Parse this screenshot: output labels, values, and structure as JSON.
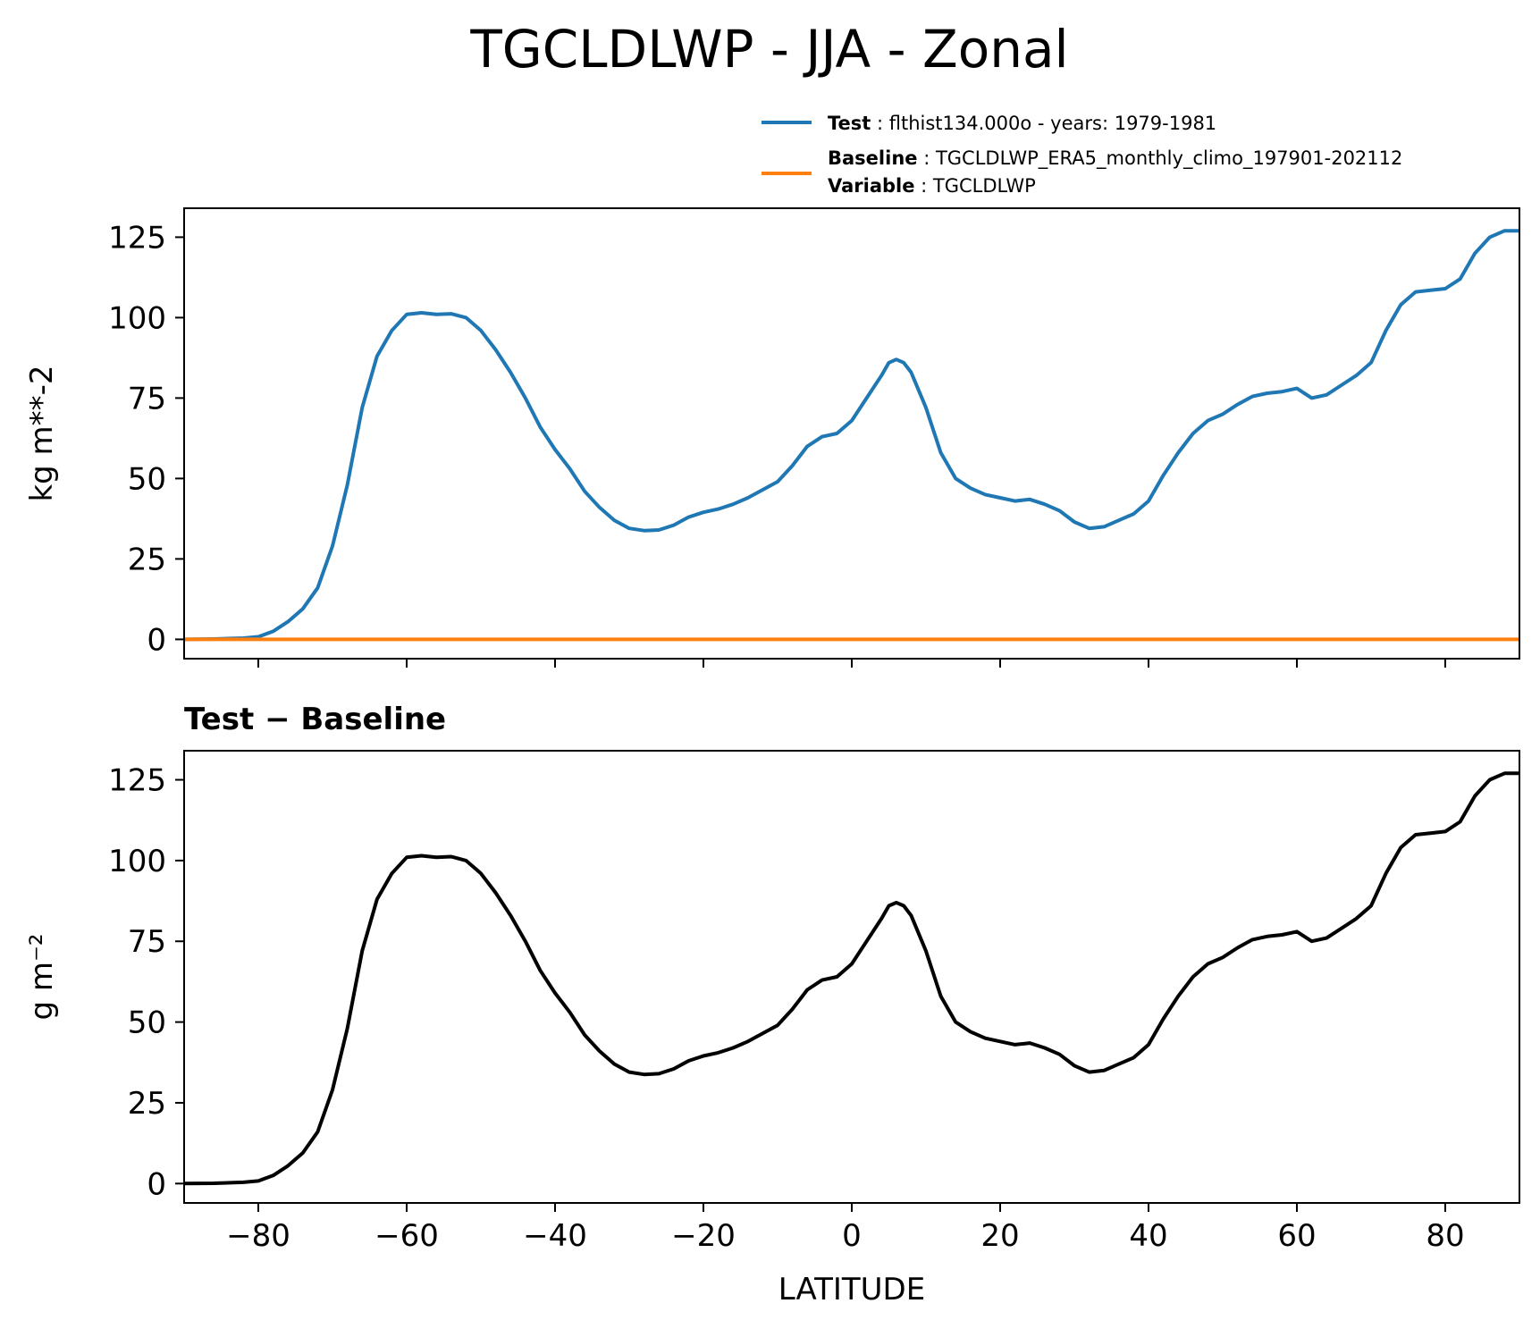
{
  "title": "TGCLDLWP - JJA - Zonal",
  "legend": {
    "test_label": "Test",
    "test_value": "flthist134.000o - years: 1979-1981",
    "baseline_label": "Baseline",
    "baseline_value": "TGCLDLWP_ERA5_monthly_climo_197901-202112",
    "variable_label": "Variable",
    "variable_value": "TGCLDLWP"
  },
  "colors": {
    "test": "#1f77b4",
    "baseline": "#ff7f0e",
    "diff": "#000000"
  },
  "chart_data": [
    {
      "type": "line",
      "title": "",
      "xlabel": "",
      "ylabel": "kg m**-2",
      "xlim": [
        -90,
        90
      ],
      "ylim": [
        -6,
        134
      ],
      "xticks": [
        -80,
        -60,
        -40,
        -20,
        0,
        20,
        40,
        60,
        80
      ],
      "yticks": [
        0,
        25,
        50,
        75,
        100,
        125
      ],
      "legend_position": "upper-right-outside",
      "x": [
        -90,
        -86,
        -82,
        -80,
        -78,
        -76,
        -74,
        -72,
        -70,
        -68,
        -66,
        -64,
        -62,
        -60,
        -58,
        -56,
        -54,
        -52,
        -50,
        -48,
        -46,
        -44,
        -42,
        -40,
        -38,
        -36,
        -34,
        -32,
        -30,
        -28,
        -26,
        -24,
        -22,
        -20,
        -18,
        -16,
        -14,
        -12,
        -10,
        -8,
        -6,
        -4,
        -2,
        0,
        2,
        4,
        5,
        6,
        7,
        8,
        10,
        12,
        14,
        16,
        18,
        20,
        22,
        24,
        26,
        28,
        30,
        32,
        34,
        36,
        38,
        40,
        42,
        44,
        46,
        48,
        50,
        52,
        54,
        56,
        58,
        60,
        62,
        64,
        66,
        68,
        70,
        72,
        74,
        76,
        78,
        80,
        82,
        84,
        86,
        88,
        90
      ],
      "series": [
        {
          "name": "Test",
          "color": "#1f77b4",
          "values": [
            0,
            0.1,
            0.4,
            0.8,
            2.5,
            5.5,
            9.5,
            16,
            29,
            48,
            72,
            88,
            96,
            101,
            101.5,
            101,
            101.2,
            100,
            96,
            90,
            83,
            75,
            66,
            59,
            53,
            46,
            41,
            37,
            34.5,
            33.8,
            34,
            35.5,
            38,
            39.5,
            40.5,
            42,
            44,
            46.5,
            49,
            54,
            60,
            63,
            64,
            68,
            75,
            82,
            86,
            87,
            86,
            83,
            72,
            58,
            50,
            47,
            45,
            44,
            43,
            43.5,
            42,
            40,
            36.5,
            34.5,
            35,
            37,
            39,
            43,
            51,
            58,
            64,
            68,
            70,
            73,
            75.5,
            76.5,
            77,
            78,
            75,
            76,
            79,
            82,
            86,
            96,
            104,
            108,
            108.5,
            109,
            112,
            120,
            125,
            127,
            127
          ]
        },
        {
          "name": "Baseline",
          "color": "#ff7f0e",
          "values": [
            0,
            0,
            0,
            0,
            0,
            0,
            0,
            0,
            0,
            0,
            0,
            0,
            0,
            0,
            0,
            0,
            0,
            0,
            0,
            0,
            0,
            0,
            0,
            0,
            0,
            0,
            0,
            0,
            0,
            0,
            0,
            0,
            0,
            0,
            0,
            0,
            0,
            0,
            0,
            0,
            0,
            0,
            0,
            0,
            0,
            0,
            0,
            0,
            0,
            0,
            0,
            0,
            0,
            0,
            0,
            0,
            0,
            0,
            0,
            0,
            0,
            0,
            0,
            0,
            0,
            0,
            0,
            0,
            0,
            0,
            0,
            0,
            0,
            0,
            0,
            0,
            0,
            0,
            0,
            0,
            0,
            0,
            0,
            0,
            0,
            0,
            0,
            0,
            0,
            0,
            0
          ]
        }
      ]
    },
    {
      "type": "line",
      "title": "Test − Baseline",
      "xlabel": "LATITUDE",
      "ylabel": "g m⁻²",
      "xlim": [
        -90,
        90
      ],
      "ylim": [
        -6,
        134
      ],
      "xticks": [
        -80,
        -60,
        -40,
        -20,
        0,
        20,
        40,
        60,
        80
      ],
      "xtick_labels": [
        "−80",
        "−60",
        "−40",
        "−20",
        "0",
        "20",
        "40",
        "60",
        "80"
      ],
      "yticks": [
        0,
        25,
        50,
        75,
        100,
        125
      ],
      "x": [
        -90,
        -86,
        -82,
        -80,
        -78,
        -76,
        -74,
        -72,
        -70,
        -68,
        -66,
        -64,
        -62,
        -60,
        -58,
        -56,
        -54,
        -52,
        -50,
        -48,
        -46,
        -44,
        -42,
        -40,
        -38,
        -36,
        -34,
        -32,
        -30,
        -28,
        -26,
        -24,
        -22,
        -20,
        -18,
        -16,
        -14,
        -12,
        -10,
        -8,
        -6,
        -4,
        -2,
        0,
        2,
        4,
        5,
        6,
        7,
        8,
        10,
        12,
        14,
        16,
        18,
        20,
        22,
        24,
        26,
        28,
        30,
        32,
        34,
        36,
        38,
        40,
        42,
        44,
        46,
        48,
        50,
        52,
        54,
        56,
        58,
        60,
        62,
        64,
        66,
        68,
        70,
        72,
        74,
        76,
        78,
        80,
        82,
        84,
        86,
        88,
        90
      ],
      "series": [
        {
          "name": "",
          "color": "#000000",
          "values": [
            0,
            0.1,
            0.4,
            0.8,
            2.5,
            5.5,
            9.5,
            16,
            29,
            48,
            72,
            88,
            96,
            101,
            101.5,
            101,
            101.2,
            100,
            96,
            90,
            83,
            75,
            66,
            59,
            53,
            46,
            41,
            37,
            34.5,
            33.8,
            34,
            35.5,
            38,
            39.5,
            40.5,
            42,
            44,
            46.5,
            49,
            54,
            60,
            63,
            64,
            68,
            75,
            82,
            86,
            87,
            86,
            83,
            72,
            58,
            50,
            47,
            45,
            44,
            43,
            43.5,
            42,
            40,
            36.5,
            34.5,
            35,
            37,
            39,
            43,
            51,
            58,
            64,
            68,
            70,
            73,
            75.5,
            76.5,
            77,
            78,
            75,
            76,
            79,
            82,
            86,
            96,
            104,
            108,
            108.5,
            109,
            112,
            120,
            125,
            127,
            127
          ]
        }
      ]
    }
  ]
}
